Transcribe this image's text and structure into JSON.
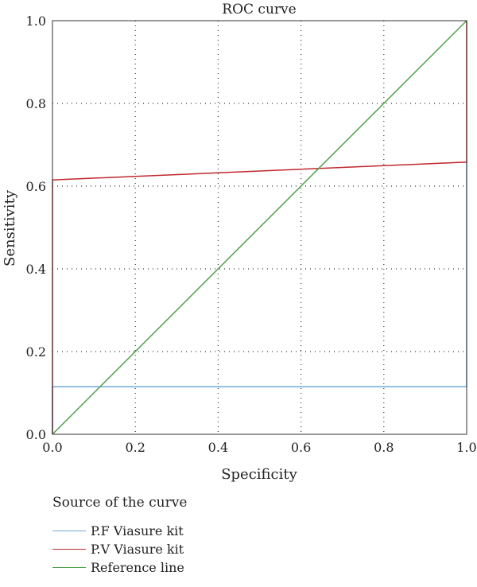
{
  "chart_data": {
    "type": "line",
    "title": "ROC curve",
    "xlabel": "Specificity",
    "ylabel": "Sensitivity",
    "xlim": [
      0,
      1
    ],
    "ylim": [
      0,
      1
    ],
    "xticks": [
      "0.0",
      "0.2",
      "0.4",
      "0.6",
      "0.8",
      "1.0"
    ],
    "yticks": [
      "0.0",
      "0.2",
      "0.4",
      "0.6",
      "0.8",
      "1.0"
    ],
    "grid": "dotted",
    "legend_title": "Source of the curve",
    "legend_position": "bottom-left",
    "series": [
      {
        "name": "P.F Viasure kit",
        "color": "#6fa8dc",
        "x": [
          0,
          0,
          1,
          1
        ],
        "y": [
          0,
          0.115,
          0.115,
          0.66
        ]
      },
      {
        "name": "P.V Viasure kit",
        "color": "#c0282d",
        "x": [
          0,
          0,
          1,
          1
        ],
        "y": [
          0,
          0.615,
          0.658,
          1.0
        ]
      },
      {
        "name": "Reference line",
        "color": "#4ea24a",
        "x": [
          0,
          1
        ],
        "y": [
          0,
          1
        ]
      }
    ]
  }
}
